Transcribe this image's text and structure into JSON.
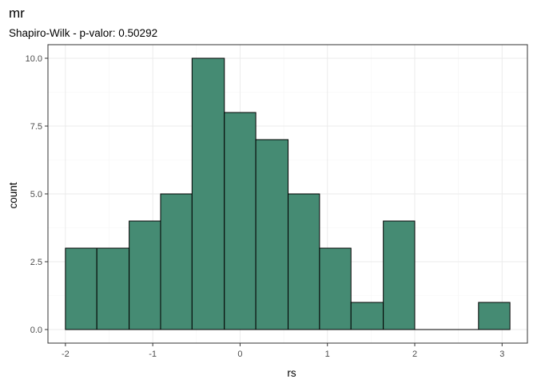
{
  "chart_data": {
    "type": "bar",
    "title": "mr",
    "subtitle": "Shapiro-Wilk - p-valor:  0.50292",
    "xlabel": "rs",
    "ylabel": "count",
    "bar_color": "#458B73",
    "bar_outline": "#000000",
    "grid": true,
    "bin_width": 0.363,
    "bins": [
      {
        "x0": -2.0,
        "x1": -1.64,
        "count": 3
      },
      {
        "x0": -1.64,
        "x1": -1.27,
        "count": 3
      },
      {
        "x0": -1.27,
        "x1": -0.91,
        "count": 4
      },
      {
        "x0": -0.91,
        "x1": -0.55,
        "count": 5
      },
      {
        "x0": -0.55,
        "x1": -0.18,
        "count": 10
      },
      {
        "x0": -0.18,
        "x1": 0.18,
        "count": 8
      },
      {
        "x0": 0.18,
        "x1": 0.55,
        "count": 7
      },
      {
        "x0": 0.55,
        "x1": 0.91,
        "count": 5
      },
      {
        "x0": 0.91,
        "x1": 1.27,
        "count": 3
      },
      {
        "x0": 1.27,
        "x1": 1.64,
        "count": 1
      },
      {
        "x0": 1.64,
        "x1": 2.0,
        "count": 4
      },
      {
        "x0": 2.0,
        "x1": 2.36,
        "count": 0
      },
      {
        "x0": 2.36,
        "x1": 2.73,
        "count": 0
      },
      {
        "x0": 2.73,
        "x1": 3.09,
        "count": 1
      }
    ],
    "xlim": [
      -2.2,
      3.29
    ],
    "ylim": [
      -0.5,
      10.5
    ],
    "x_ticks": [
      -2,
      -1,
      0,
      1,
      2,
      3
    ],
    "x_tick_labels": [
      "-2",
      "-1",
      "0",
      "1",
      "2",
      "3"
    ],
    "y_ticks": [
      0,
      2.5,
      5,
      7.5,
      10
    ],
    "y_tick_labels": [
      "0.0",
      "2.5",
      "5.0",
      "7.5",
      "10.0"
    ]
  }
}
